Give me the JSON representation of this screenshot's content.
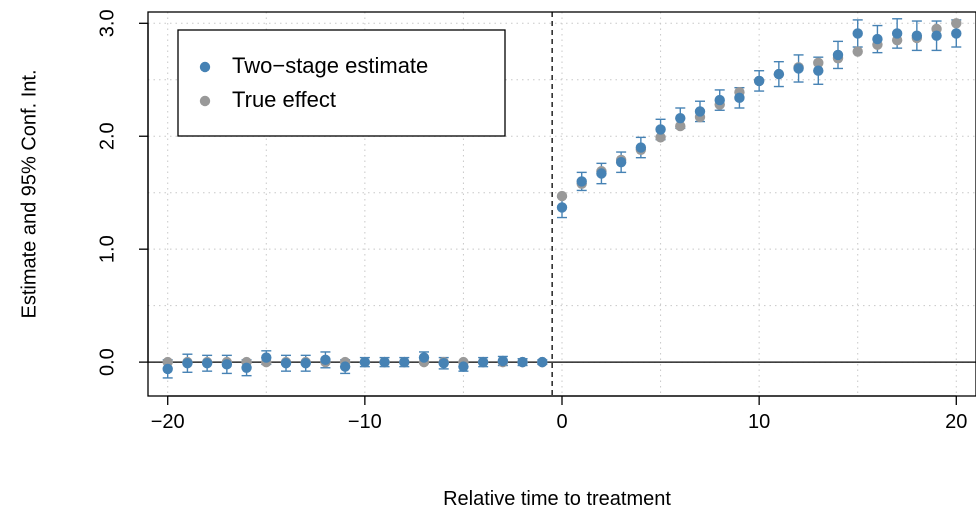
{
  "chart_data": {
    "type": "scatter",
    "xlabel": "Relative time to treatment",
    "ylabel": "Estimate and 95% Conf. Int.",
    "xlim": [
      -21,
      21
    ],
    "ylim": [
      -0.3,
      3.1
    ],
    "x_ticks": [
      -20,
      -10,
      0,
      10,
      20
    ],
    "x_tick_labels": [
      "−20",
      "−10",
      "0",
      "10",
      "20"
    ],
    "y_ticks": [
      0,
      1,
      2,
      3
    ],
    "y_tick_labels": [
      "0.0",
      "1.0",
      "2.0",
      "3.0"
    ],
    "grid": true,
    "treatment_line_x": -0.5,
    "reference_line_y": 0,
    "legend_position": "top-left",
    "x": [
      -20,
      -19,
      -18,
      -17,
      -16,
      -15,
      -14,
      -13,
      -12,
      -11,
      -10,
      -9,
      -8,
      -7,
      -6,
      -5,
      -4,
      -3,
      -2,
      -1,
      0,
      1,
      2,
      3,
      4,
      5,
      6,
      7,
      8,
      9,
      10,
      11,
      12,
      13,
      14,
      15,
      16,
      17,
      18,
      19,
      20
    ],
    "series": [
      {
        "name": "Two−stage estimate",
        "color": "#4682b4",
        "values": [
          -0.06,
          -0.01,
          -0.01,
          -0.02,
          -0.05,
          0.04,
          -0.01,
          -0.01,
          0.02,
          -0.04,
          0.0,
          0.0,
          0.0,
          0.04,
          -0.01,
          -0.04,
          0.0,
          0.01,
          0.0,
          0.0,
          1.37,
          1.6,
          1.67,
          1.77,
          1.9,
          2.06,
          2.16,
          2.22,
          2.32,
          2.34,
          2.49,
          2.55,
          2.6,
          2.58,
          2.72,
          2.91,
          2.86,
          2.91,
          2.89,
          2.89,
          2.91
        ],
        "ci_lower": [
          -0.14,
          -0.09,
          -0.08,
          -0.1,
          -0.12,
          -0.02,
          -0.08,
          -0.08,
          -0.05,
          -0.1,
          -0.04,
          -0.04,
          -0.04,
          -0.01,
          -0.06,
          -0.08,
          -0.04,
          -0.03,
          -0.03,
          -0.02,
          1.28,
          1.52,
          1.58,
          1.68,
          1.81,
          1.97,
          2.07,
          2.13,
          2.23,
          2.25,
          2.4,
          2.44,
          2.48,
          2.46,
          2.6,
          2.79,
          2.74,
          2.78,
          2.76,
          2.76,
          2.79
        ],
        "ci_upper": [
          0.02,
          0.07,
          0.06,
          0.06,
          0.02,
          0.1,
          0.06,
          0.06,
          0.09,
          0.02,
          0.04,
          0.04,
          0.04,
          0.09,
          0.04,
          0.0,
          0.04,
          0.05,
          0.03,
          0.02,
          1.46,
          1.68,
          1.76,
          1.86,
          1.99,
          2.15,
          2.25,
          2.31,
          2.41,
          2.43,
          2.58,
          2.66,
          2.72,
          2.7,
          2.84,
          3.03,
          2.98,
          3.04,
          3.02,
          3.02,
          3.03
        ]
      },
      {
        "name": "True effect",
        "color": "#999999",
        "values": [
          0,
          0,
          0,
          0,
          0,
          0,
          0,
          0,
          0,
          0,
          0,
          0,
          0,
          0,
          0,
          0,
          0,
          0,
          0,
          0,
          1.47,
          1.58,
          1.69,
          1.79,
          1.88,
          1.99,
          2.09,
          2.17,
          2.28,
          2.39,
          2.49,
          2.55,
          2.61,
          2.65,
          2.69,
          2.75,
          2.81,
          2.85,
          2.87,
          2.95,
          3.0
        ]
      }
    ]
  }
}
